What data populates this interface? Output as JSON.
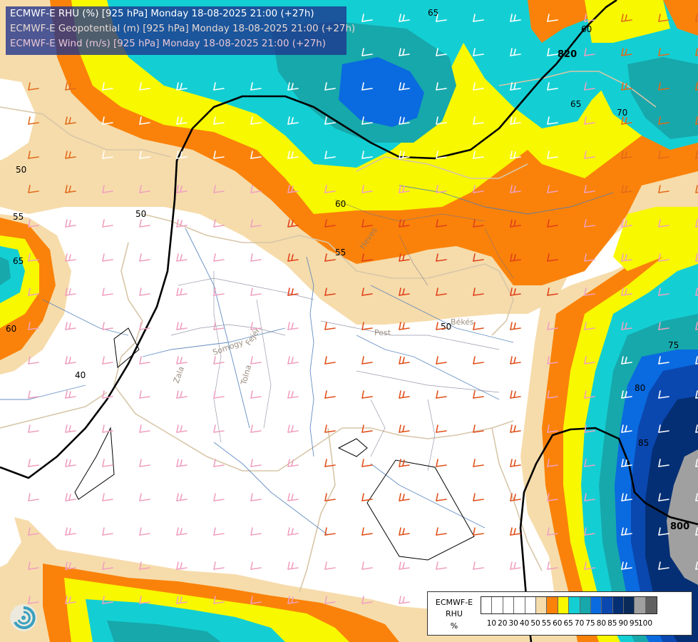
{
  "titles": {
    "line1": "ECMWF-E RHU (%) [925 hPa] Monday 18-08-2025 21:00 (+27h)",
    "line2": "ECMWF-E Geopotential (m) [925 hPa] Monday 18-08-2025 21:00 (+27h)",
    "line3": "ECMWF-E Wind (m/s) [925 hPa] Monday 18-08-2025 21:00 (+27h)"
  },
  "colors": {
    "white": "#ffffff",
    "tan": "#f6dcab",
    "orange": "#fa820a",
    "yellow": "#f8f800",
    "cyan": "#13cfd4",
    "teal": "#17a8ab",
    "blue": "#0a6ae0",
    "darkblue": "#0a48b0",
    "navy": "#052f74",
    "gray": "#a0a0a0"
  },
  "map_labels": {
    "rhu_contours": [
      "50",
      "55",
      "60",
      "65",
      "70",
      "75",
      "80",
      "85",
      "40"
    ],
    "geopotential_contours": [
      "820",
      "800"
    ],
    "regions": [
      "Heves",
      "Pest",
      "Békés",
      "Somogy",
      "Fejér",
      "Zala",
      "Tolna"
    ]
  },
  "legend": {
    "name_lines": [
      "ECMWF-E",
      "RHU",
      "%"
    ],
    "levels": [
      "10",
      "20",
      "30",
      "40",
      "50",
      "55",
      "60",
      "65",
      "70",
      "75",
      "80",
      "85",
      "90",
      "95",
      "100"
    ],
    "swatch_colors": [
      "#ffffff",
      "#ffffff",
      "#ffffff",
      "#ffffff",
      "#ffffff",
      "#f6dcab",
      "#fa820a",
      "#f8f800",
      "#13cfd4",
      "#17a8ab",
      "#0a6ae0",
      "#0a48b0",
      "#052f74",
      "#0a2a5a",
      "#a0a0a0",
      "#606060"
    ]
  }
}
